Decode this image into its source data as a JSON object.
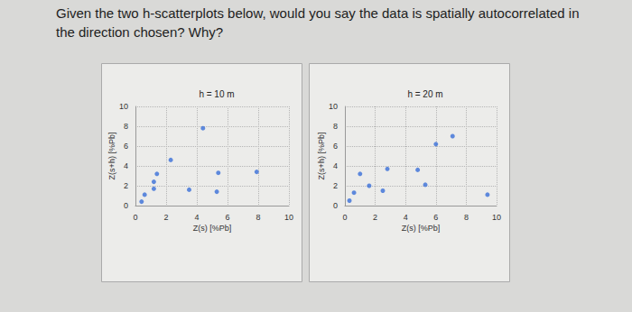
{
  "question": "Given the two h-scatterplots below, would you say the data is spatially autocorrelated in the direction chosen? Why?",
  "chart_data": [
    {
      "type": "scatter",
      "title": "h = 10 m",
      "xlabel": "Z(s) [%Pb]",
      "ylabel": "Z(s+h) [%Pb]",
      "x": [
        0.4,
        0.6,
        1.2,
        1.2,
        1.4,
        2.3,
        3.5,
        4.4,
        5.3,
        5.4,
        7.9
      ],
      "values": [
        0.4,
        1.1,
        1.7,
        2.4,
        3.2,
        4.6,
        1.6,
        7.8,
        1.4,
        3.3,
        3.4
      ],
      "xlim": [
        0,
        10
      ],
      "ylim": [
        0,
        10
      ],
      "xticks": [
        0,
        2,
        4,
        6,
        8,
        10
      ],
      "yticks": [
        0,
        2,
        4,
        6,
        8,
        10
      ],
      "grid": true,
      "color": "#3a6fd8"
    },
    {
      "type": "scatter",
      "title": "h = 20 m",
      "xlabel": "Z(s) [%Pb]",
      "ylabel": "Z(s+h) [%Pb]",
      "x": [
        0.3,
        0.6,
        1.0,
        1.6,
        2.5,
        2.8,
        4.8,
        5.3,
        6.0,
        7.1,
        9.4
      ],
      "values": [
        0.5,
        1.3,
        3.2,
        2.0,
        1.5,
        3.7,
        3.6,
        2.1,
        6.2,
        7.0,
        1.1
      ],
      "xlim": [
        0,
        10
      ],
      "ylim": [
        0,
        10
      ],
      "xticks": [
        0,
        2,
        4,
        6,
        8,
        10
      ],
      "yticks": [
        0,
        2,
        4,
        6,
        8,
        10
      ],
      "grid": true,
      "color": "#3a6fd8"
    }
  ]
}
